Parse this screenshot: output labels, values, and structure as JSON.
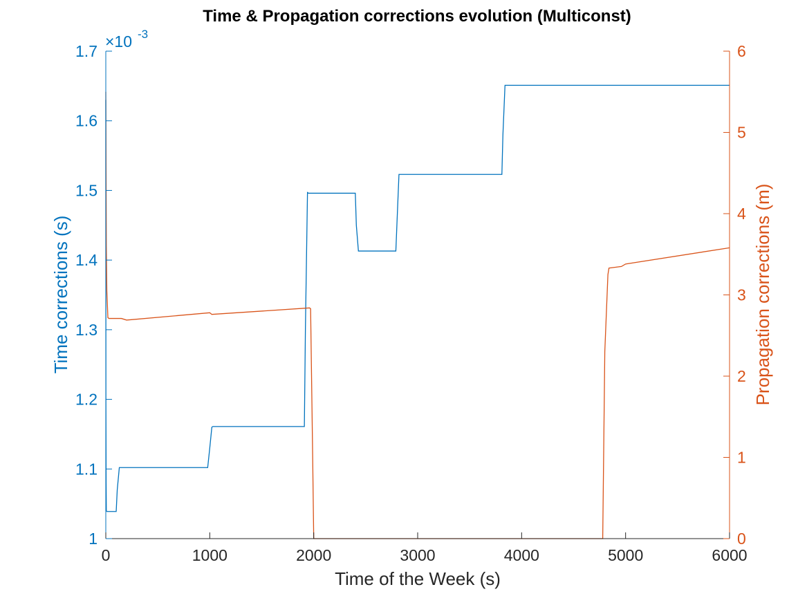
{
  "chart_data": {
    "type": "line",
    "title": "Time & Propagation corrections evolution (Multiconst)",
    "xlabel": "Time of the Week (s)",
    "ylabel_left": "Time corrections (s)",
    "ylabel_right": "Propagation corrections (m)",
    "xlim": [
      0,
      6000
    ],
    "ylim_left": [
      1.0,
      1.7
    ],
    "ylim_right": [
      0,
      6
    ],
    "x_ticks": [
      "0",
      "1000",
      "2000",
      "3000",
      "4000",
      "5000",
      "6000"
    ],
    "y_left_ticks": [
      "1",
      "1.1",
      "1.2",
      "1.3",
      "1.4",
      "1.5",
      "1.6",
      "1.7"
    ],
    "y_right_ticks": [
      "0",
      "1",
      "2",
      "3",
      "4",
      "5",
      "6"
    ],
    "y_left_exponent": {
      "mult": "×10",
      "power": "-3"
    },
    "grid": false,
    "legend": "none",
    "colors": {
      "left": "#0072BD",
      "right": "#D95319",
      "axis_x": "#262626",
      "title": "#000000"
    },
    "series": [
      {
        "axis": "left",
        "unit_scale": "1e-3",
        "x": [
          0,
          1,
          3,
          5,
          10,
          100,
          110,
          130,
          980,
          1000,
          1020,
          1030,
          1910,
          1920,
          1940,
          1950,
          2400,
          2410,
          2430,
          2790,
          2800,
          2820,
          2850,
          3810,
          3820,
          3840,
          6000
        ],
        "y": [
          1.63,
          1.2,
          1.08,
          1.04,
          1.039,
          1.039,
          1.07,
          1.102,
          1.102,
          1.13,
          1.16,
          1.161,
          1.161,
          1.3,
          1.497,
          1.496,
          1.496,
          1.45,
          1.413,
          1.413,
          1.45,
          1.523,
          1.523,
          1.523,
          1.58,
          1.651,
          1.651
        ]
      },
      {
        "axis": "right",
        "x": [
          0,
          5,
          10,
          20,
          30,
          150,
          200,
          1000,
          1020,
          1960,
          1970,
          1990,
          2000,
          4780,
          4800,
          4830,
          4840,
          4960,
          5000,
          6000
        ],
        "y": [
          5.5,
          3.6,
          3.05,
          2.72,
          2.71,
          2.71,
          2.69,
          2.78,
          2.76,
          2.84,
          2.83,
          1.0,
          0,
          0,
          2.3,
          3.25,
          3.33,
          3.35,
          3.38,
          3.58
        ]
      }
    ]
  }
}
